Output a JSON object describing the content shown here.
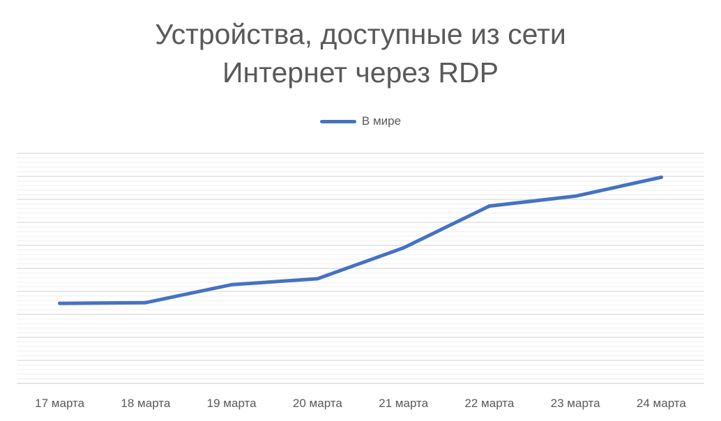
{
  "chart_data": {
    "type": "line",
    "title_lines": [
      "Устройства, доступные из сети",
      "Интернет через RDP"
    ],
    "categories": [
      "17 марта",
      "18 марта",
      "19 марта",
      "20 марта",
      "21 марта",
      "22 марта",
      "23 марта",
      "24 марта"
    ],
    "series": [
      {
        "name": "В мире",
        "color": "#4472C4",
        "values": [
          3.48,
          3.51,
          4.29,
          4.55,
          5.89,
          7.71,
          8.14,
          8.96
        ]
      }
    ],
    "ylim": [
      0,
      10
    ],
    "gridlines": true,
    "minor_gridlines": true,
    "legend_position": "top",
    "y_axis_labels_shown": false
  }
}
